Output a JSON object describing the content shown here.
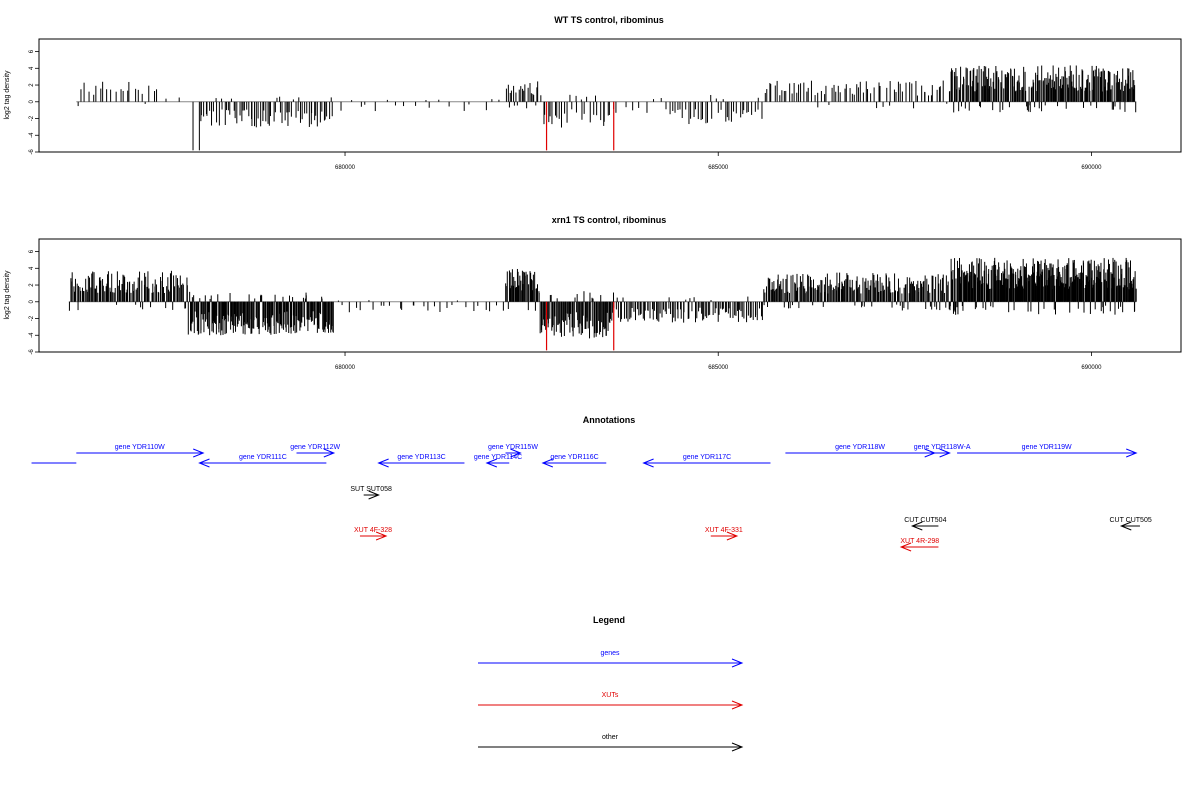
{
  "chart_data": [
    {
      "type": "bar",
      "title": "WT TS control, ribominus",
      "ylabel": "log2 tag density",
      "xlabel": "",
      "xlim": [
        675900,
        691200
      ],
      "ylim": [
        -6,
        7.5
      ],
      "yticks": [
        -6,
        -4,
        -2,
        0,
        2,
        4,
        6
      ],
      "xticks": [
        680000,
        685000,
        690000
      ],
      "xtick_labels": [
        "680000",
        "685000",
        "690000"
      ],
      "highlight_color": "#e00000",
      "bar_color": "#000000",
      "highlights": [
        {
          "x": 682700,
          "value": -5.8
        },
        {
          "x": 683600,
          "value": -5.8
        }
      ],
      "region_profile": [
        {
          "from": 676400,
          "to": 677500,
          "level": 2.0,
          "density": 0.02
        },
        {
          "from": 677500,
          "to": 677950,
          "level": 0.5,
          "density": 0.005
        },
        {
          "from": 677950,
          "to": 678050,
          "level": -5.8,
          "density": 0.02
        },
        {
          "from": 678050,
          "to": 679850,
          "level": -2.5,
          "density": 0.04
        },
        {
          "from": 679850,
          "to": 682150,
          "level": -0.9,
          "density": 0.008
        },
        {
          "from": 682150,
          "to": 682600,
          "level": 2.3,
          "density": 0.05
        },
        {
          "from": 682600,
          "to": 683600,
          "level": -2.5,
          "density": 0.03
        },
        {
          "from": 683600,
          "to": 684350,
          "level": -1.2,
          "density": 0.01
        },
        {
          "from": 684350,
          "to": 685600,
          "level": -2.2,
          "density": 0.03
        },
        {
          "from": 685600,
          "to": 688100,
          "level": 2.1,
          "density": 0.03
        },
        {
          "from": 688100,
          "to": 690600,
          "level": 3.5,
          "density": 0.09
        }
      ]
    },
    {
      "type": "bar",
      "title": "xrn1 TS control, ribominus",
      "ylabel": "log2 tag density",
      "xlabel": "",
      "xlim": [
        675900,
        691200
      ],
      "ylim": [
        -6,
        7.5
      ],
      "yticks": [
        -6,
        -4,
        -2,
        0,
        2,
        4,
        6
      ],
      "xticks": [
        680000,
        685000,
        690000
      ],
      "xtick_labels": [
        "680000",
        "685000",
        "690000"
      ],
      "highlight_color": "#e00000",
      "bar_color": "#000000",
      "highlights": [
        {
          "x": 682700,
          "value": -5.8
        },
        {
          "x": 683600,
          "value": -5.8
        }
      ],
      "region_profile": [
        {
          "from": 676300,
          "to": 677900,
          "level": 3.0,
          "density": 0.07
        },
        {
          "from": 677900,
          "to": 679850,
          "level": -3.2,
          "density": 0.1
        },
        {
          "from": 679850,
          "to": 682150,
          "level": -1.0,
          "density": 0.012
        },
        {
          "from": 682150,
          "to": 682600,
          "level": 3.2,
          "density": 0.09
        },
        {
          "from": 682600,
          "to": 683600,
          "level": -3.5,
          "density": 0.09
        },
        {
          "from": 683600,
          "to": 685600,
          "level": -2.0,
          "density": 0.05
        },
        {
          "from": 685600,
          "to": 688100,
          "level": 2.8,
          "density": 0.08
        },
        {
          "from": 688100,
          "to": 690600,
          "level": 4.2,
          "density": 0.13
        }
      ]
    }
  ],
  "annotations": {
    "title": "Annotations",
    "items": [
      {
        "label": "",
        "start": 675800,
        "end": 676400,
        "strand": "-",
        "kind": "gene",
        "row": 1
      },
      {
        "label": "gene YDR110W",
        "start": 676400,
        "end": 678100,
        "strand": "+",
        "kind": "gene",
        "row": 0
      },
      {
        "label": "gene YDR111C",
        "start": 678050,
        "end": 679750,
        "strand": "-",
        "kind": "gene",
        "row": 1
      },
      {
        "label": "gene YDR112W",
        "start": 679350,
        "end": 679850,
        "strand": "+",
        "kind": "gene",
        "row": 0
      },
      {
        "label": "gene YDR113C",
        "start": 680450,
        "end": 681600,
        "strand": "-",
        "kind": "gene",
        "row": 1
      },
      {
        "label": "gene YDR114C",
        "start": 681900,
        "end": 682200,
        "strand": "-",
        "kind": "gene",
        "row": 1
      },
      {
        "label": "gene YDR115W",
        "start": 682150,
        "end": 682350,
        "strand": "+",
        "kind": "gene",
        "row": 0
      },
      {
        "label": "gene YDR116C",
        "start": 682650,
        "end": 683500,
        "strand": "-",
        "kind": "gene",
        "row": 1
      },
      {
        "label": "gene YDR117C",
        "start": 684000,
        "end": 685700,
        "strand": "-",
        "kind": "gene",
        "row": 1
      },
      {
        "label": "gene YDR118W",
        "start": 685900,
        "end": 687900,
        "strand": "+",
        "kind": "gene",
        "row": 0
      },
      {
        "label": "gene YDR118W-A",
        "start": 687900,
        "end": 688100,
        "strand": "+",
        "kind": "gene",
        "row": 0
      },
      {
        "label": "gene YDR119W",
        "start": 688200,
        "end": 690600,
        "strand": "+",
        "kind": "gene",
        "row": 0
      },
      {
        "label": "SUT SUT058",
        "start": 680250,
        "end": 680450,
        "strand": "+",
        "kind": "other",
        "row": 2
      },
      {
        "label": "CUT CUT504",
        "start": 687600,
        "end": 687950,
        "strand": "-",
        "kind": "other",
        "row": 3
      },
      {
        "label": "CUT CUT505",
        "start": 690400,
        "end": 690650,
        "strand": "-",
        "kind": "other",
        "row": 3
      },
      {
        "label": "XUT 4F-328",
        "start": 680200,
        "end": 680550,
        "strand": "+",
        "kind": "xut",
        "row": 4
      },
      {
        "label": "XUT 4F-331",
        "start": 684900,
        "end": 685250,
        "strand": "+",
        "kind": "xut",
        "row": 4
      },
      {
        "label": "XUT 4R-298",
        "start": 687450,
        "end": 687950,
        "strand": "-",
        "kind": "xut",
        "row": 5
      }
    ]
  },
  "legend": {
    "title": "Legend",
    "items": [
      {
        "label": "genes",
        "color": "#0000ff"
      },
      {
        "label": "XUTs",
        "color": "#e00000"
      },
      {
        "label": "other",
        "color": "#000000"
      }
    ]
  }
}
